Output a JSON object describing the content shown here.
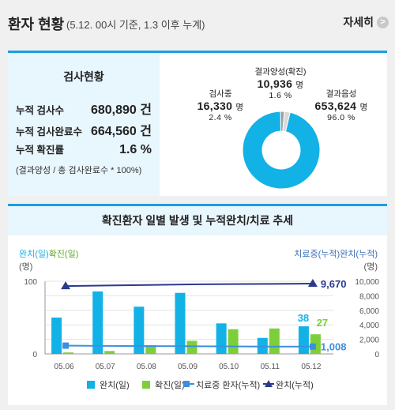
{
  "header": {
    "title": "환자 현황",
    "subtitle": "(5.12. 00시 기준, 1.3 이후 누계)",
    "detail_label": "자세히",
    "detail_arrow": ">"
  },
  "test_status": {
    "title": "검사현황",
    "rows": [
      {
        "label": "누적 검사수",
        "value": "680,890 건"
      },
      {
        "label": "누적 검사완료수",
        "value": "664,560 건"
      },
      {
        "label": "누적 확진률",
        "value": "1.6 %"
      }
    ],
    "note": "(결과양성 / 총 검사완료수 * 100%)"
  },
  "pie": {
    "slices": [
      {
        "name": "결과양성(확진)",
        "count": "10,936",
        "unit": "명",
        "percent": "1.6 %",
        "fraction": 0.016,
        "color": "#9e9e9e"
      },
      {
        "name": "검사중",
        "count": "16,330",
        "unit": "명",
        "percent": "2.4 %",
        "fraction": 0.024,
        "color": "#d9d9d9"
      },
      {
        "name": "결과음성",
        "count": "653,624",
        "unit": "명",
        "percent": "96.0 %",
        "fraction": 0.96,
        "color": "#12b2e6"
      }
    ]
  },
  "trend": {
    "title": "확진환자 일별 발생 및 누적완치/치료 추세",
    "left_axis_title_a": "완치(일)",
    "left_axis_title_b": "확진(일)",
    "left_axis_unit": "(명)",
    "right_axis_title": "치료중(누적)완치(누적)",
    "right_axis_unit": "(명)",
    "legend": [
      "완치(일)",
      "확진(일)",
      "치료중 환자(누적)",
      "완치(누적)"
    ],
    "colors": {
      "cured": "#12b2e6",
      "confirmed": "#7ccf3a",
      "treating": "#3c8fe0",
      "cured_cum": "#2b3a8c"
    }
  },
  "chart_data": {
    "type": "bar",
    "categories": [
      "05.06",
      "05.07",
      "05.08",
      "05.09",
      "05.10",
      "05.11",
      "05.12"
    ],
    "series": [
      {
        "name": "완치(일)",
        "type": "bar",
        "axis": "left",
        "values": [
          50,
          86,
          65,
          84,
          42,
          22,
          38
        ]
      },
      {
        "name": "확진(일)",
        "type": "bar",
        "axis": "left",
        "values": [
          2,
          4,
          12,
          18,
          34,
          35,
          27
        ]
      },
      {
        "name": "치료중 환자(누적)",
        "type": "line",
        "axis": "right",
        "values": [
          1135,
          1100,
          1070,
          1055,
          1030,
          1010,
          1008
        ]
      },
      {
        "name": "완치(누적)",
        "type": "line",
        "axis": "right",
        "values": [
          9333,
          9419,
          9484,
          9568,
          9610,
          9632,
          9670
        ]
      }
    ],
    "left_ylim": [
      0,
      100
    ],
    "left_ticks": [
      "100",
      "0"
    ],
    "right_ylim": [
      0,
      10000
    ],
    "right_ticks": [
      "10,000",
      "8,000",
      "6,000",
      "4,000",
      "2,000",
      "0"
    ],
    "value_labels": {
      "cured_last": "38",
      "confirmed_last": "27",
      "treating_last": "1,008",
      "cured_cum_last": "9,670"
    }
  }
}
